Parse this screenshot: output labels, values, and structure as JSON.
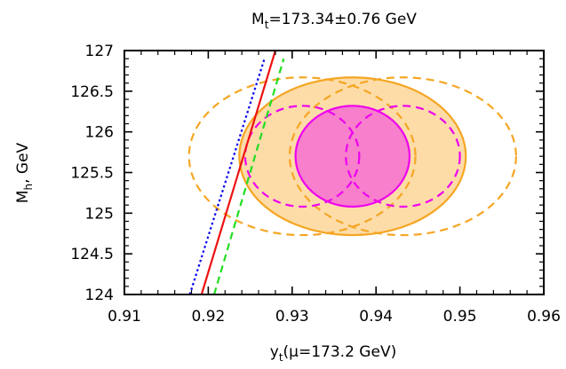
{
  "chart_data": {
    "type": "contour",
    "title": "M",
    "title_subscript": "t",
    "title_rest": "=173.34±0.76 GeV",
    "xlabel": "y",
    "xlabel_subscript": "t",
    "xlabel_rest": "(μ=173.2 GeV)",
    "ylabel": "M",
    "ylabel_subscript": "h",
    "ylabel_rest": ", GeV",
    "xlim": [
      0.91,
      0.96
    ],
    "ylim": [
      124,
      127
    ],
    "x_ticks": [
      "0.91",
      "0.92",
      "0.93",
      "0.94",
      "0.95",
      "0.96"
    ],
    "y_ticks": [
      "124",
      "124.5",
      "125",
      "125.5",
      "126",
      "126.5",
      "127"
    ],
    "ellipses": [
      {
        "cx": 0.9372,
        "cy": 125.7,
        "rx": 0.0135,
        "ry": 0.97,
        "fill": "#fddca8",
        "stroke": "#f5a623",
        "dash": false
      },
      {
        "cx": 0.9312,
        "cy": 125.7,
        "rx": 0.0135,
        "ry": 0.97,
        "fill": "none",
        "stroke": "#f5a623",
        "dash": true
      },
      {
        "cx": 0.9432,
        "cy": 125.7,
        "rx": 0.0135,
        "ry": 0.97,
        "fill": "none",
        "stroke": "#f5a623",
        "dash": true
      },
      {
        "cx": 0.9372,
        "cy": 125.7,
        "rx": 0.0068,
        "ry": 0.62,
        "fill": "#f77fcc",
        "stroke": "#ee00ee",
        "dash": false
      },
      {
        "cx": 0.9312,
        "cy": 125.7,
        "rx": 0.0068,
        "ry": 0.62,
        "fill": "none",
        "stroke": "#ee00ee",
        "dash": true
      },
      {
        "cx": 0.9432,
        "cy": 125.7,
        "rx": 0.0068,
        "ry": 0.62,
        "fill": "none",
        "stroke": "#ee00ee",
        "dash": true
      }
    ],
    "lines": [
      {
        "color": "#ee1111",
        "style": "solid",
        "x": [
          0.9192,
          0.928
        ],
        "y": [
          124,
          127
        ]
      },
      {
        "color": "#0000ee",
        "style": "dotted",
        "x": [
          0.9178,
          0.9267
        ],
        "y": [
          124,
          126.9
        ]
      },
      {
        "color": "#22dd22",
        "style": "dashed",
        "x": [
          0.9207,
          0.929
        ],
        "y": [
          124,
          126.9
        ]
      }
    ],
    "grid": false,
    "legend": false
  }
}
